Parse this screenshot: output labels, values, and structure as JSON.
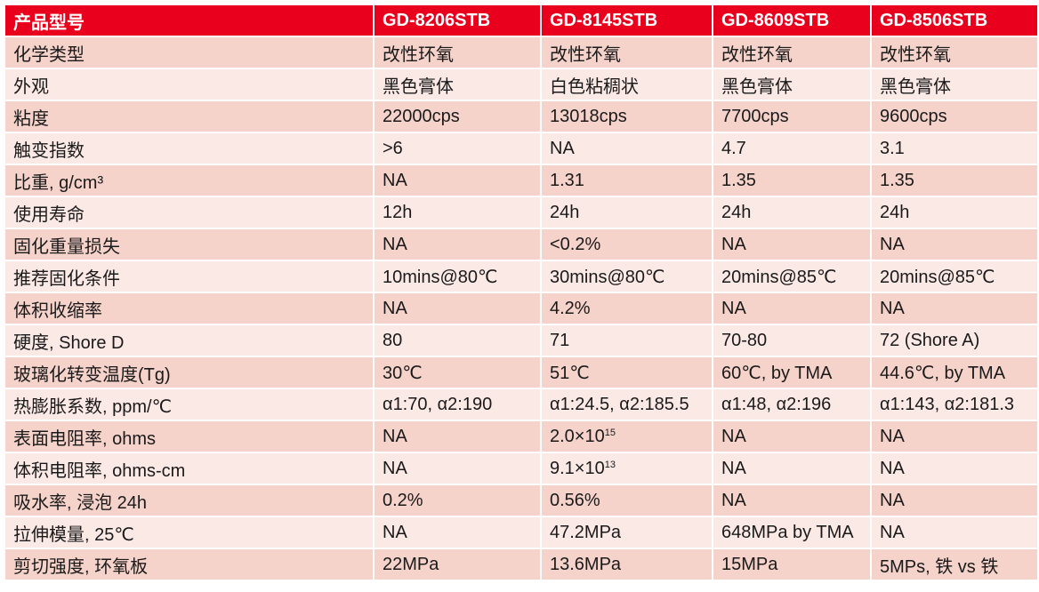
{
  "header": [
    "产品型号",
    "GD-8206STB",
    "GD-8145STB",
    "GD-8609STB",
    "GD-8506STB"
  ],
  "rows": [
    {
      "label": "化学类型",
      "values": [
        "改性环氧",
        "改性环氧",
        "改性环氧",
        "改性环氧"
      ]
    },
    {
      "label": "外观",
      "values": [
        "黑色膏体",
        "白色粘稠状",
        "黑色膏体",
        "黑色膏体"
      ]
    },
    {
      "label": "粘度",
      "values": [
        "22000cps",
        "13018cps",
        "7700cps",
        "9600cps"
      ]
    },
    {
      "label": "触变指数",
      "values": [
        ">6",
        "NA",
        "4.7",
        "3.1"
      ]
    },
    {
      "label": "比重, g/cm³",
      "values": [
        "NA",
        "1.31",
        "1.35",
        "1.35"
      ]
    },
    {
      "label": "使用寿命",
      "values": [
        "12h",
        "24h",
        "24h",
        "24h"
      ]
    },
    {
      "label": "固化重量损失",
      "values": [
        "NA",
        "<0.2%",
        "NA",
        "NA"
      ]
    },
    {
      "label": "推荐固化条件",
      "values": [
        "10mins@80℃",
        "30mins@80℃",
        "20mins@85℃",
        "20mins@85℃"
      ]
    },
    {
      "label": "体积收缩率",
      "values": [
        "NA",
        "4.2%",
        "NA",
        "NA"
      ]
    },
    {
      "label": "硬度, Shore D",
      "values": [
        "80",
        "71",
        "70-80",
        "72 (Shore A)"
      ]
    },
    {
      "label": "玻璃化转变温度(Tg)",
      "values": [
        "30℃",
        "51℃",
        "60℃, by TMA",
        "44.6℃, by TMA"
      ]
    },
    {
      "label": "热膨胀系数, ppm/℃",
      "values": [
        "α1:70, α2:190",
        "α1:24.5, α2:185.5",
        "α1:48, α2:196",
        "α1:143, α2:181.3"
      ]
    },
    {
      "label": "表面电阻率, ohms",
      "values": [
        "NA",
        {
          "base": "2.0×10",
          "exp": "15"
        },
        "NA",
        "NA"
      ]
    },
    {
      "label": "体积电阻率, ohms-cm",
      "values": [
        "NA",
        {
          "base": "9.1×10",
          "exp": "13"
        },
        "NA",
        "NA"
      ]
    },
    {
      "label": "吸水率, 浸泡 24h",
      "values": [
        "0.2%",
        "0.56%",
        "NA",
        "NA"
      ]
    },
    {
      "label": "拉伸模量, 25℃",
      "values": [
        "NA",
        "47.2MPa",
        "648MPa by TMA",
        "NA"
      ]
    },
    {
      "label": "剪切强度, 环氧板",
      "values": [
        "22MPa",
        "13.6MPa",
        "15MPa",
        "5MPs, 铁 vs 铁"
      ]
    }
  ],
  "colors": {
    "header_bg": "#e8001c",
    "row_dark": "#f5d2ca",
    "row_light": "#fbe9e6",
    "header_text": "#ffffff"
  }
}
